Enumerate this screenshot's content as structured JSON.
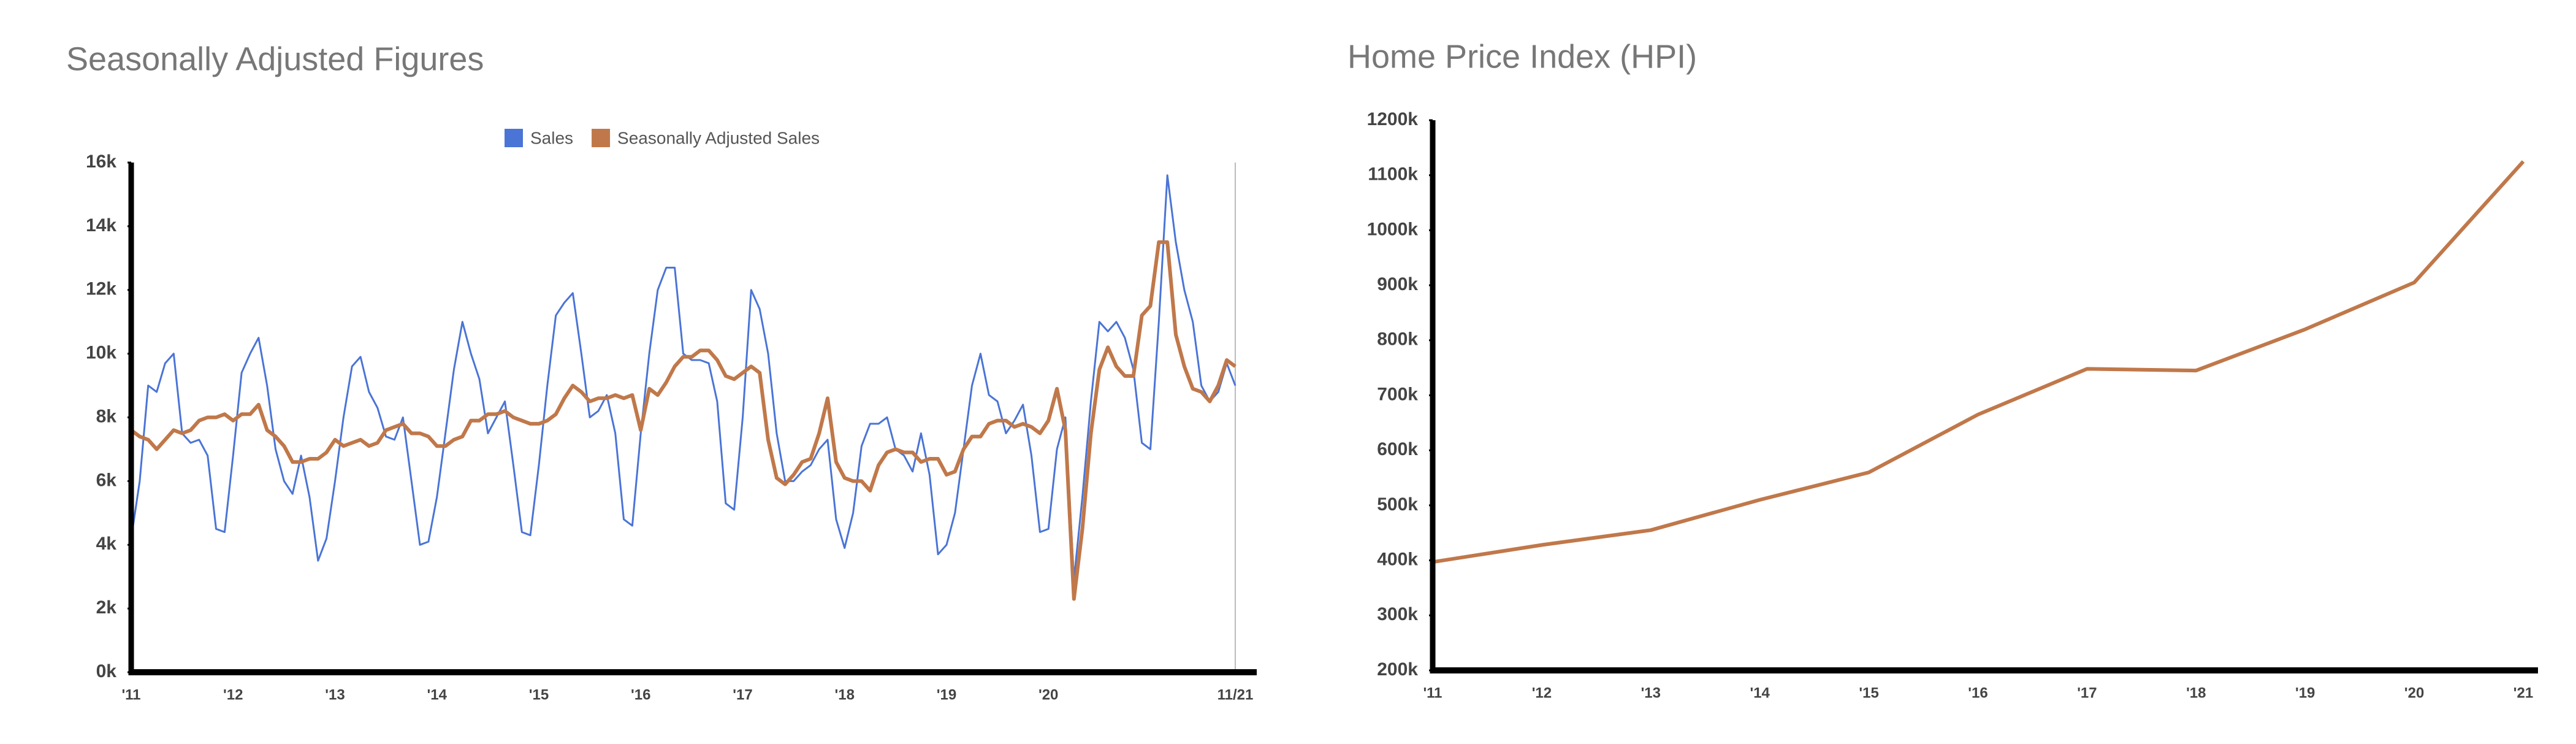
{
  "chart_data": [
    {
      "type": "line",
      "title": "Seasonally Adjusted Figures",
      "categories": [
        "'11",
        null,
        null,
        null,
        null,
        null,
        null,
        null,
        null,
        null,
        null,
        null,
        "'12",
        null,
        null,
        null,
        null,
        null,
        null,
        null,
        null,
        null,
        null,
        null,
        "'13",
        null,
        null,
        null,
        null,
        null,
        null,
        null,
        null,
        null,
        null,
        null,
        "'14",
        null,
        null,
        null,
        null,
        null,
        null,
        null,
        null,
        null,
        null,
        null,
        "'15",
        null,
        null,
        null,
        null,
        null,
        null,
        null,
        null,
        null,
        null,
        null,
        "'16",
        null,
        null,
        null,
        null,
        null,
        null,
        null,
        null,
        null,
        null,
        null,
        "'17",
        null,
        null,
        null,
        null,
        null,
        null,
        null,
        null,
        null,
        null,
        null,
        "'18",
        null,
        null,
        null,
        null,
        null,
        null,
        null,
        null,
        null,
        null,
        null,
        "'19",
        null,
        null,
        null,
        null,
        null,
        null,
        null,
        null,
        null,
        null,
        null,
        "'20",
        null,
        null,
        null,
        null,
        null,
        null,
        null,
        null,
        null,
        null,
        null,
        null,
        null,
        null,
        null,
        null,
        null,
        null,
        null,
        null,
        null,
        "11/21"
      ],
      "series": [
        {
          "name": "Sales",
          "color": "#4a74d6",
          "values": [
            4200,
            6000,
            9000,
            8800,
            9700,
            10000,
            7500,
            7200,
            7300,
            6800,
            4500,
            4400,
            6800,
            9400,
            10000,
            10500,
            9000,
            7000,
            6000,
            5600,
            6800,
            5500,
            3500,
            4200,
            6000,
            8000,
            9600,
            9900,
            8800,
            8300,
            7400,
            7300,
            8000,
            6000,
            4000,
            4100,
            5500,
            7500,
            9500,
            11000,
            10000,
            9200,
            7500,
            8000,
            8500,
            6500,
            4400,
            4300,
            6500,
            9000,
            11200,
            11600,
            11900,
            10000,
            8000,
            8200,
            8700,
            7500,
            4800,
            4600,
            7500,
            10000,
            12000,
            12700,
            12700,
            10000,
            9800,
            9800,
            9700,
            8500,
            5300,
            5100,
            8000,
            12000,
            11400,
            10000,
            7500,
            6000,
            6000,
            6300,
            6500,
            7000,
            7300,
            4800,
            3900,
            5000,
            7100,
            7800,
            7800,
            8000,
            7000,
            6800,
            6300,
            7500,
            6200,
            3700,
            4000,
            5000,
            7000,
            9000,
            10000,
            8700,
            8500,
            7500,
            7900,
            8400,
            6800,
            4400,
            4500,
            7000,
            8000,
            2900,
            5500,
            8500,
            11000,
            10700,
            11000,
            10500,
            9500,
            7200,
            7000,
            11000,
            15600,
            13500,
            12000,
            11000,
            9000,
            8500,
            8800,
            9700,
            9000
          ]
        },
        {
          "name": "Seasonally Adjusted Sales",
          "color": "#c0784a",
          "values": [
            7600,
            7400,
            7300,
            7000,
            7300,
            7600,
            7500,
            7600,
            7900,
            8000,
            8000,
            8100,
            7900,
            8100,
            8100,
            8400,
            7600,
            7400,
            7100,
            6600,
            6600,
            6700,
            6700,
            6900,
            7300,
            7100,
            7200,
            7300,
            7100,
            7200,
            7600,
            7700,
            7800,
            7500,
            7500,
            7400,
            7100,
            7100,
            7300,
            7400,
            7900,
            7900,
            8100,
            8100,
            8200,
            8000,
            7900,
            7800,
            7800,
            7900,
            8100,
            8600,
            9000,
            8800,
            8500,
            8600,
            8600,
            8700,
            8600,
            8700,
            7600,
            8900,
            8700,
            9100,
            9600,
            9900,
            9900,
            10100,
            10100,
            9800,
            9300,
            9200,
            9400,
            9600,
            9400,
            7300,
            6100,
            5900,
            6200,
            6600,
            6700,
            7500,
            8600,
            6600,
            6100,
            6000,
            6000,
            5700,
            6500,
            6900,
            7000,
            6900,
            6900,
            6600,
            6700,
            6700,
            6200,
            6300,
            7000,
            7400,
            7400,
            7800,
            7900,
            7900,
            7700,
            7800,
            7700,
            7500,
            7900,
            8900,
            7600,
            2300,
            4500,
            7500,
            9500,
            10200,
            9600,
            9300,
            9300,
            11200,
            11500,
            13500,
            13500,
            10600,
            9600,
            8900,
            8800,
            8500,
            9000,
            9800,
            9600
          ]
        }
      ],
      "ylim": [
        0,
        16000
      ],
      "yticks": [
        {
          "value": 0,
          "label": "0k"
        },
        {
          "value": 2000,
          "label": "2k"
        },
        {
          "value": 4000,
          "label": "4k"
        },
        {
          "value": 6000,
          "label": "6k"
        },
        {
          "value": 8000,
          "label": "8k"
        },
        {
          "value": 10000,
          "label": "10k"
        },
        {
          "value": 12000,
          "label": "12k"
        },
        {
          "value": 14000,
          "label": "14k"
        },
        {
          "value": 16000,
          "label": "16k"
        }
      ],
      "legend": "top"
    },
    {
      "type": "line",
      "title": "Home Price Index (HPI)",
      "categories": [
        "'11",
        "'12",
        "'13",
        "'14",
        "'15",
        "'16",
        "'17",
        "'18",
        "'19",
        "'20",
        "'21"
      ],
      "values": [
        397000,
        428000,
        455000,
        510000,
        560000,
        665000,
        748000,
        745000,
        820000,
        905000,
        1125000
      ],
      "color": "#c0784a",
      "ylim": [
        200000,
        1200000
      ],
      "yticks": [
        {
          "value": 200000,
          "label": "200k"
        },
        {
          "value": 300000,
          "label": "300k"
        },
        {
          "value": 400000,
          "label": "400k"
        },
        {
          "value": 500000,
          "label": "500k"
        },
        {
          "value": 600000,
          "label": "600k"
        },
        {
          "value": 700000,
          "label": "700k"
        },
        {
          "value": 800000,
          "label": "800k"
        },
        {
          "value": 900000,
          "label": "900k"
        },
        {
          "value": 1000000,
          "label": "1000k"
        },
        {
          "value": 1100000,
          "label": "1100k"
        },
        {
          "value": 1200000,
          "label": "1200k"
        }
      ]
    }
  ]
}
